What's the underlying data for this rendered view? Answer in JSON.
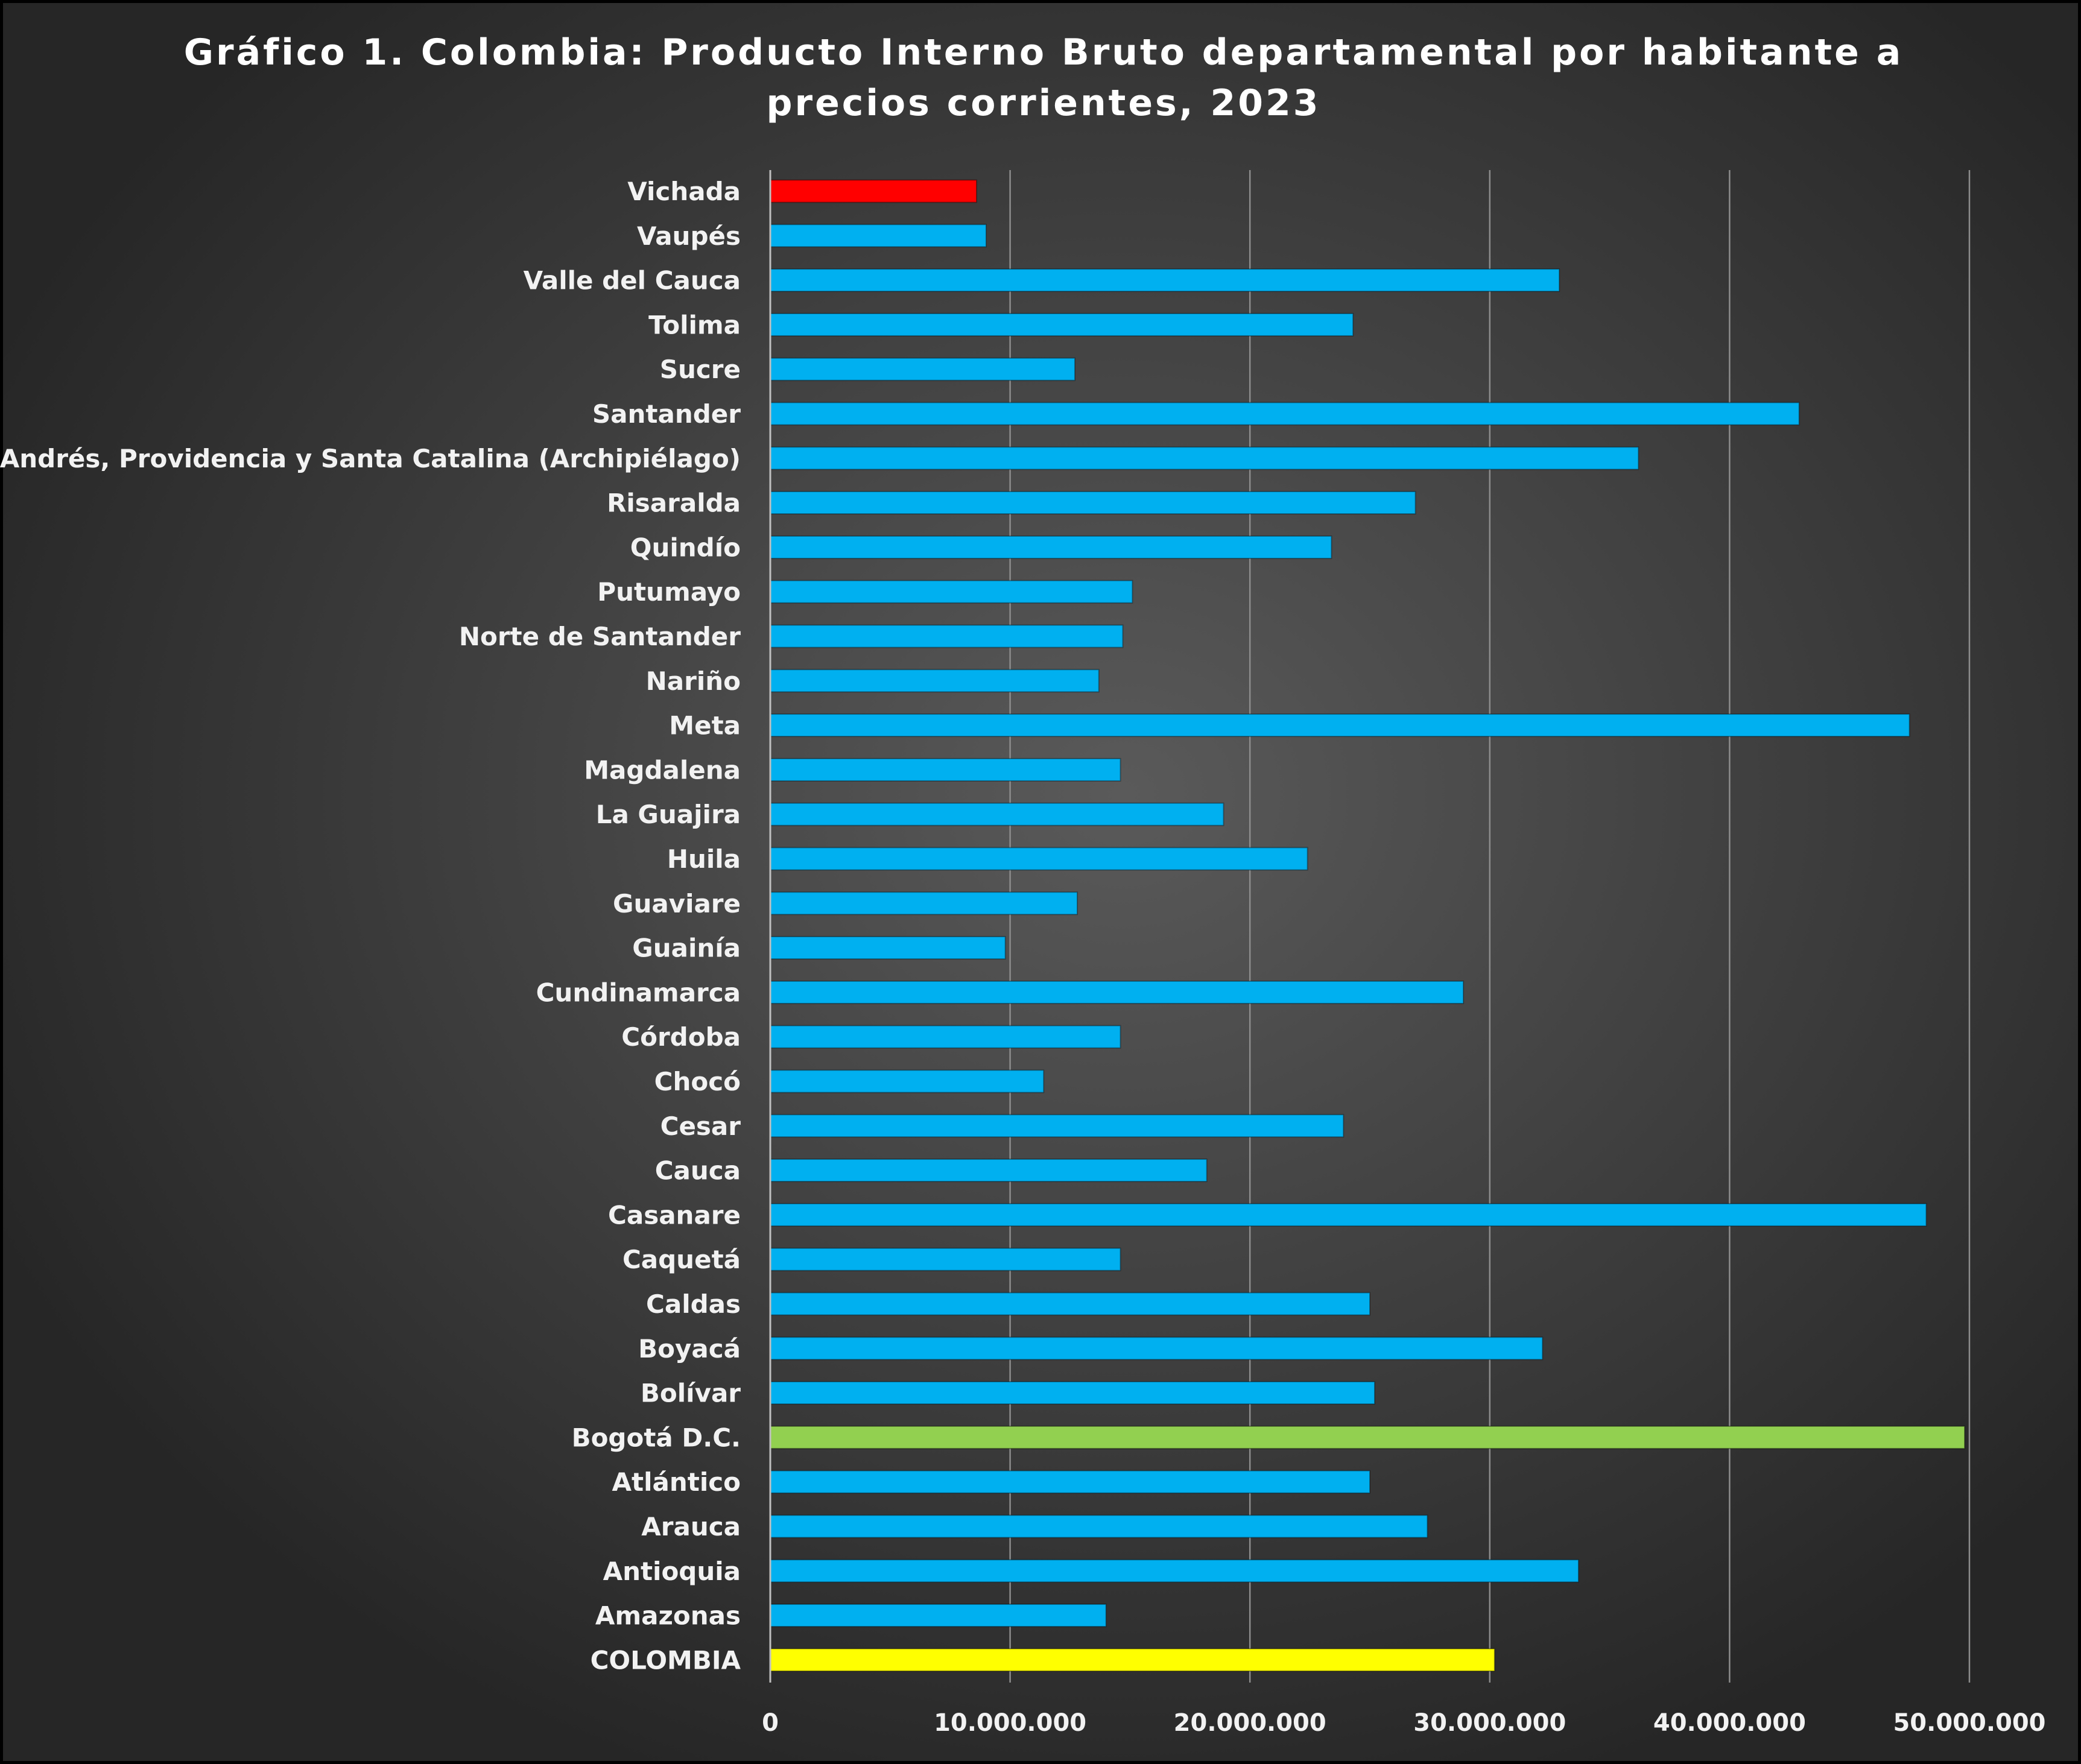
{
  "chart_data": {
    "type": "bar",
    "orientation": "horizontal",
    "title_line1": "Gráfico 1. Colombia: Producto Interno Bruto departamental por habitante a",
    "title_line2": "precios corrientes, 2023",
    "xlim": [
      0,
      50000000
    ],
    "x_ticks": [
      {
        "value": 0,
        "label": "0"
      },
      {
        "value": 10000000,
        "label": "10.000.000"
      },
      {
        "value": 20000000,
        "label": "20.000.000"
      },
      {
        "value": 30000000,
        "label": "30.000.000"
      },
      {
        "value": 40000000,
        "label": "40.000.000"
      },
      {
        "value": 50000000,
        "label": "50.000.000"
      }
    ],
    "grid": "vertical",
    "legend": "none",
    "colors": {
      "default": "#00b0f0",
      "highlight_min": "#ff0000",
      "highlight_max": "#92d050",
      "national": "#ffff00"
    },
    "bars": [
      {
        "label": "Vichada",
        "value": 8600000,
        "color": "#ff0000"
      },
      {
        "label": "Vaupés",
        "value": 9000000,
        "color": "#00b0f0"
      },
      {
        "label": "Valle del Cauca",
        "value": 32900000,
        "color": "#00b0f0"
      },
      {
        "label": "Tolima",
        "value": 24300000,
        "color": "#00b0f0"
      },
      {
        "label": "Sucre",
        "value": 12700000,
        "color": "#00b0f0"
      },
      {
        "label": "Santander",
        "value": 42900000,
        "color": "#00b0f0"
      },
      {
        "label": "San Andrés, Providencia y Santa Catalina (Archipiélago)",
        "value": 36200000,
        "color": "#00b0f0"
      },
      {
        "label": "Risaralda",
        "value": 26900000,
        "color": "#00b0f0"
      },
      {
        "label": "Quindío",
        "value": 23400000,
        "color": "#00b0f0"
      },
      {
        "label": "Putumayo",
        "value": 15100000,
        "color": "#00b0f0"
      },
      {
        "label": "Norte de Santander",
        "value": 14700000,
        "color": "#00b0f0"
      },
      {
        "label": "Nariño",
        "value": 13700000,
        "color": "#00b0f0"
      },
      {
        "label": "Meta",
        "value": 47500000,
        "color": "#00b0f0"
      },
      {
        "label": "Magdalena",
        "value": 14600000,
        "color": "#00b0f0"
      },
      {
        "label": "La Guajira",
        "value": 18900000,
        "color": "#00b0f0"
      },
      {
        "label": "Huila",
        "value": 22400000,
        "color": "#00b0f0"
      },
      {
        "label": "Guaviare",
        "value": 12800000,
        "color": "#00b0f0"
      },
      {
        "label": "Guainía",
        "value": 9800000,
        "color": "#00b0f0"
      },
      {
        "label": "Cundinamarca",
        "value": 28900000,
        "color": "#00b0f0"
      },
      {
        "label": "Córdoba",
        "value": 14600000,
        "color": "#00b0f0"
      },
      {
        "label": "Chocó",
        "value": 11400000,
        "color": "#00b0f0"
      },
      {
        "label": "Cesar",
        "value": 23900000,
        "color": "#00b0f0"
      },
      {
        "label": "Cauca",
        "value": 18200000,
        "color": "#00b0f0"
      },
      {
        "label": "Casanare",
        "value": 48200000,
        "color": "#00b0f0"
      },
      {
        "label": "Caquetá",
        "value": 14600000,
        "color": "#00b0f0"
      },
      {
        "label": "Caldas",
        "value": 25000000,
        "color": "#00b0f0"
      },
      {
        "label": "Boyacá",
        "value": 32200000,
        "color": "#00b0f0"
      },
      {
        "label": "Bolívar",
        "value": 25200000,
        "color": "#00b0f0"
      },
      {
        "label": "Bogotá D.C.",
        "value": 49800000,
        "color": "#92d050"
      },
      {
        "label": "Atlántico",
        "value": 25000000,
        "color": "#00b0f0"
      },
      {
        "label": "Arauca",
        "value": 27400000,
        "color": "#00b0f0"
      },
      {
        "label": "Antioquia",
        "value": 33700000,
        "color": "#00b0f0"
      },
      {
        "label": "Amazonas",
        "value": 14000000,
        "color": "#00b0f0"
      },
      {
        "label": "COLOMBIA",
        "value": 30200000,
        "color": "#ffff00"
      }
    ]
  }
}
